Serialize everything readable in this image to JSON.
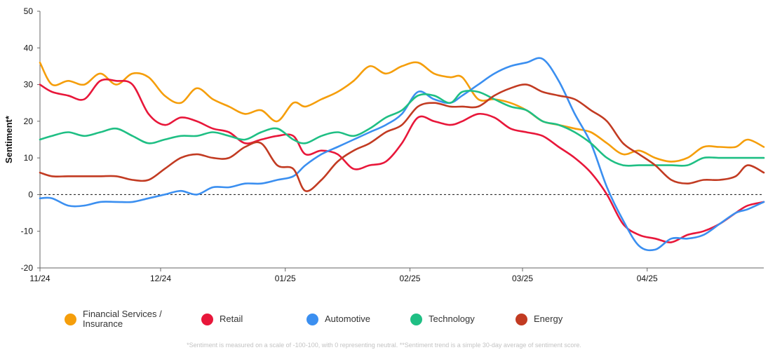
{
  "chart_data": {
    "type": "line",
    "ylabel": "Sentiment*",
    "ylim": [
      -20,
      50
    ],
    "yticks": [
      -20,
      -10,
      0,
      10,
      20,
      30,
      40,
      50
    ],
    "xlim": [
      "2024-11-01",
      "2025-04-30"
    ],
    "xticks": [
      {
        "date": "2024-11-01",
        "label": "11/24"
      },
      {
        "date": "2024-12-01",
        "label": "12/24"
      },
      {
        "date": "2025-01-01",
        "label": "01/25"
      },
      {
        "date": "2025-02-01",
        "label": "02/25"
      },
      {
        "date": "2025-03-01",
        "label": "03/25"
      },
      {
        "date": "2025-04-01",
        "label": "04/25"
      }
    ],
    "reference_line": 0,
    "series": [
      {
        "name": "Financial Services / Insurance",
        "color": "#f59e0b",
        "points": [
          [
            "2024-11-01",
            36
          ],
          [
            "2024-11-04",
            30
          ],
          [
            "2024-11-08",
            31
          ],
          [
            "2024-11-12",
            30
          ],
          [
            "2024-11-16",
            33
          ],
          [
            "2024-11-20",
            30
          ],
          [
            "2024-11-24",
            33
          ],
          [
            "2024-11-28",
            32
          ],
          [
            "2024-12-02",
            27
          ],
          [
            "2024-12-06",
            25
          ],
          [
            "2024-12-10",
            29
          ],
          [
            "2024-12-14",
            26
          ],
          [
            "2024-12-18",
            24
          ],
          [
            "2024-12-22",
            22
          ],
          [
            "2024-12-26",
            23
          ],
          [
            "2024-12-30",
            20
          ],
          [
            "2025-01-03",
            25
          ],
          [
            "2025-01-06",
            24
          ],
          [
            "2025-01-10",
            26
          ],
          [
            "2025-01-14",
            28
          ],
          [
            "2025-01-18",
            31
          ],
          [
            "2025-01-22",
            35
          ],
          [
            "2025-01-26",
            33
          ],
          [
            "2025-01-30",
            35
          ],
          [
            "2025-02-03",
            36
          ],
          [
            "2025-02-07",
            33
          ],
          [
            "2025-02-11",
            32
          ],
          [
            "2025-02-14",
            32
          ],
          [
            "2025-02-18",
            26
          ],
          [
            "2025-02-22",
            26
          ],
          [
            "2025-02-26",
            25
          ],
          [
            "2025-03-02",
            23
          ],
          [
            "2025-03-06",
            20
          ],
          [
            "2025-03-10",
            19
          ],
          [
            "2025-03-14",
            18
          ],
          [
            "2025-03-18",
            17
          ],
          [
            "2025-03-22",
            14
          ],
          [
            "2025-03-26",
            11
          ],
          [
            "2025-03-30",
            12
          ],
          [
            "2025-04-03",
            10
          ],
          [
            "2025-04-07",
            9
          ],
          [
            "2025-04-11",
            10
          ],
          [
            "2025-04-15",
            13
          ],
          [
            "2025-04-19",
            13
          ],
          [
            "2025-04-23",
            13
          ],
          [
            "2025-04-26",
            15
          ],
          [
            "2025-04-30",
            13
          ]
        ]
      },
      {
        "name": "Retail",
        "color": "#e8173a",
        "points": [
          [
            "2024-11-01",
            30
          ],
          [
            "2024-11-04",
            28
          ],
          [
            "2024-11-08",
            27
          ],
          [
            "2024-11-12",
            26
          ],
          [
            "2024-11-16",
            31
          ],
          [
            "2024-11-20",
            31
          ],
          [
            "2024-11-24",
            30
          ],
          [
            "2024-11-28",
            22
          ],
          [
            "2024-12-02",
            19
          ],
          [
            "2024-12-06",
            21
          ],
          [
            "2024-12-10",
            20
          ],
          [
            "2024-12-14",
            18
          ],
          [
            "2024-12-18",
            17
          ],
          [
            "2024-12-22",
            14
          ],
          [
            "2024-12-26",
            15
          ],
          [
            "2024-12-30",
            16
          ],
          [
            "2025-01-03",
            16
          ],
          [
            "2025-01-06",
            11
          ],
          [
            "2025-01-10",
            12
          ],
          [
            "2025-01-14",
            11
          ],
          [
            "2025-01-18",
            7
          ],
          [
            "2025-01-22",
            8
          ],
          [
            "2025-01-26",
            9
          ],
          [
            "2025-01-30",
            14
          ],
          [
            "2025-02-03",
            21
          ],
          [
            "2025-02-07",
            20
          ],
          [
            "2025-02-11",
            19
          ],
          [
            "2025-02-14",
            20
          ],
          [
            "2025-02-18",
            22
          ],
          [
            "2025-02-22",
            21
          ],
          [
            "2025-02-26",
            18
          ],
          [
            "2025-03-02",
            17
          ],
          [
            "2025-03-06",
            16
          ],
          [
            "2025-03-10",
            13
          ],
          [
            "2025-03-14",
            10
          ],
          [
            "2025-03-18",
            6
          ],
          [
            "2025-03-22",
            0
          ],
          [
            "2025-03-26",
            -8
          ],
          [
            "2025-03-30",
            -11
          ],
          [
            "2025-04-03",
            -12
          ],
          [
            "2025-04-07",
            -13
          ],
          [
            "2025-04-11",
            -11
          ],
          [
            "2025-04-15",
            -10
          ],
          [
            "2025-04-19",
            -8
          ],
          [
            "2025-04-23",
            -5
          ],
          [
            "2025-04-26",
            -3
          ],
          [
            "2025-04-30",
            -2
          ]
        ]
      },
      {
        "name": "Automotive",
        "color": "#3b8ff0",
        "points": [
          [
            "2024-11-01",
            -1
          ],
          [
            "2024-11-04",
            -1
          ],
          [
            "2024-11-08",
            -3
          ],
          [
            "2024-11-12",
            -3
          ],
          [
            "2024-11-16",
            -2
          ],
          [
            "2024-11-20",
            -2
          ],
          [
            "2024-11-24",
            -2
          ],
          [
            "2024-11-28",
            -1
          ],
          [
            "2024-12-02",
            0
          ],
          [
            "2024-12-06",
            1
          ],
          [
            "2024-12-10",
            0
          ],
          [
            "2024-12-14",
            2
          ],
          [
            "2024-12-18",
            2
          ],
          [
            "2024-12-22",
            3
          ],
          [
            "2024-12-26",
            3
          ],
          [
            "2024-12-30",
            4
          ],
          [
            "2025-01-03",
            5
          ],
          [
            "2025-01-06",
            8
          ],
          [
            "2025-01-10",
            11
          ],
          [
            "2025-01-14",
            13
          ],
          [
            "2025-01-18",
            15
          ],
          [
            "2025-01-22",
            17
          ],
          [
            "2025-01-26",
            19
          ],
          [
            "2025-01-30",
            22
          ],
          [
            "2025-02-03",
            28
          ],
          [
            "2025-02-07",
            26
          ],
          [
            "2025-02-11",
            25
          ],
          [
            "2025-02-14",
            27
          ],
          [
            "2025-02-18",
            30
          ],
          [
            "2025-02-22",
            33
          ],
          [
            "2025-02-26",
            35
          ],
          [
            "2025-03-02",
            36
          ],
          [
            "2025-03-06",
            37
          ],
          [
            "2025-03-10",
            31
          ],
          [
            "2025-03-14",
            22
          ],
          [
            "2025-03-18",
            14
          ],
          [
            "2025-03-22",
            2
          ],
          [
            "2025-03-26",
            -7
          ],
          [
            "2025-03-30",
            -14
          ],
          [
            "2025-04-03",
            -15
          ],
          [
            "2025-04-07",
            -12
          ],
          [
            "2025-04-11",
            -12
          ],
          [
            "2025-04-15",
            -11
          ],
          [
            "2025-04-19",
            -8
          ],
          [
            "2025-04-23",
            -5
          ],
          [
            "2025-04-26",
            -4
          ],
          [
            "2025-04-30",
            -2
          ]
        ]
      },
      {
        "name": "Technology",
        "color": "#1fbf84",
        "points": [
          [
            "2024-11-01",
            15
          ],
          [
            "2024-11-04",
            16
          ],
          [
            "2024-11-08",
            17
          ],
          [
            "2024-11-12",
            16
          ],
          [
            "2024-11-16",
            17
          ],
          [
            "2024-11-20",
            18
          ],
          [
            "2024-11-24",
            16
          ],
          [
            "2024-11-28",
            14
          ],
          [
            "2024-12-02",
            15
          ],
          [
            "2024-12-06",
            16
          ],
          [
            "2024-12-10",
            16
          ],
          [
            "2024-12-14",
            17
          ],
          [
            "2024-12-18",
            16
          ],
          [
            "2024-12-22",
            15
          ],
          [
            "2024-12-26",
            17
          ],
          [
            "2024-12-30",
            18
          ],
          [
            "2025-01-03",
            15
          ],
          [
            "2025-01-06",
            14
          ],
          [
            "2025-01-10",
            16
          ],
          [
            "2025-01-14",
            17
          ],
          [
            "2025-01-18",
            16
          ],
          [
            "2025-01-22",
            18
          ],
          [
            "2025-01-26",
            21
          ],
          [
            "2025-01-30",
            23
          ],
          [
            "2025-02-03",
            27
          ],
          [
            "2025-02-07",
            27
          ],
          [
            "2025-02-11",
            25
          ],
          [
            "2025-02-14",
            28
          ],
          [
            "2025-02-18",
            28
          ],
          [
            "2025-02-22",
            26
          ],
          [
            "2025-02-26",
            24
          ],
          [
            "2025-03-02",
            23
          ],
          [
            "2025-03-06",
            20
          ],
          [
            "2025-03-10",
            19
          ],
          [
            "2025-03-14",
            17
          ],
          [
            "2025-03-18",
            14
          ],
          [
            "2025-03-22",
            10
          ],
          [
            "2025-03-26",
            8
          ],
          [
            "2025-03-30",
            8
          ],
          [
            "2025-04-03",
            8
          ],
          [
            "2025-04-07",
            8
          ],
          [
            "2025-04-11",
            8
          ],
          [
            "2025-04-15",
            10
          ],
          [
            "2025-04-19",
            10
          ],
          [
            "2025-04-23",
            10
          ],
          [
            "2025-04-26",
            10
          ],
          [
            "2025-04-30",
            10
          ]
        ]
      },
      {
        "name": "Energy",
        "color": "#c23b22",
        "points": [
          [
            "2024-11-01",
            6
          ],
          [
            "2024-11-04",
            5
          ],
          [
            "2024-11-08",
            5
          ],
          [
            "2024-11-12",
            5
          ],
          [
            "2024-11-16",
            5
          ],
          [
            "2024-11-20",
            5
          ],
          [
            "2024-11-24",
            4
          ],
          [
            "2024-11-28",
            4
          ],
          [
            "2024-12-02",
            7
          ],
          [
            "2024-12-06",
            10
          ],
          [
            "2024-12-10",
            11
          ],
          [
            "2024-12-14",
            10
          ],
          [
            "2024-12-18",
            10
          ],
          [
            "2024-12-22",
            13
          ],
          [
            "2024-12-26",
            14
          ],
          [
            "2024-12-30",
            8
          ],
          [
            "2025-01-03",
            7
          ],
          [
            "2025-01-06",
            1
          ],
          [
            "2025-01-10",
            4
          ],
          [
            "2025-01-14",
            9
          ],
          [
            "2025-01-18",
            12
          ],
          [
            "2025-01-22",
            14
          ],
          [
            "2025-01-26",
            17
          ],
          [
            "2025-01-30",
            19
          ],
          [
            "2025-02-03",
            24
          ],
          [
            "2025-02-07",
            25
          ],
          [
            "2025-02-11",
            24
          ],
          [
            "2025-02-14",
            24
          ],
          [
            "2025-02-18",
            24
          ],
          [
            "2025-02-22",
            27
          ],
          [
            "2025-02-26",
            29
          ],
          [
            "2025-03-02",
            30
          ],
          [
            "2025-03-06",
            28
          ],
          [
            "2025-03-10",
            27
          ],
          [
            "2025-03-14",
            26
          ],
          [
            "2025-03-18",
            23
          ],
          [
            "2025-03-22",
            20
          ],
          [
            "2025-03-26",
            14
          ],
          [
            "2025-03-30",
            11
          ],
          [
            "2025-04-03",
            8
          ],
          [
            "2025-04-07",
            4
          ],
          [
            "2025-04-11",
            3
          ],
          [
            "2025-04-15",
            4
          ],
          [
            "2025-04-19",
            4
          ],
          [
            "2025-04-23",
            5
          ],
          [
            "2025-04-26",
            8
          ],
          [
            "2025-04-30",
            6
          ]
        ]
      }
    ]
  },
  "footnote": "*Sentiment is measured on a scale of -100-100, with 0 representing neutral. **Sentiment trend is a simple 30-day average of sentiment score."
}
